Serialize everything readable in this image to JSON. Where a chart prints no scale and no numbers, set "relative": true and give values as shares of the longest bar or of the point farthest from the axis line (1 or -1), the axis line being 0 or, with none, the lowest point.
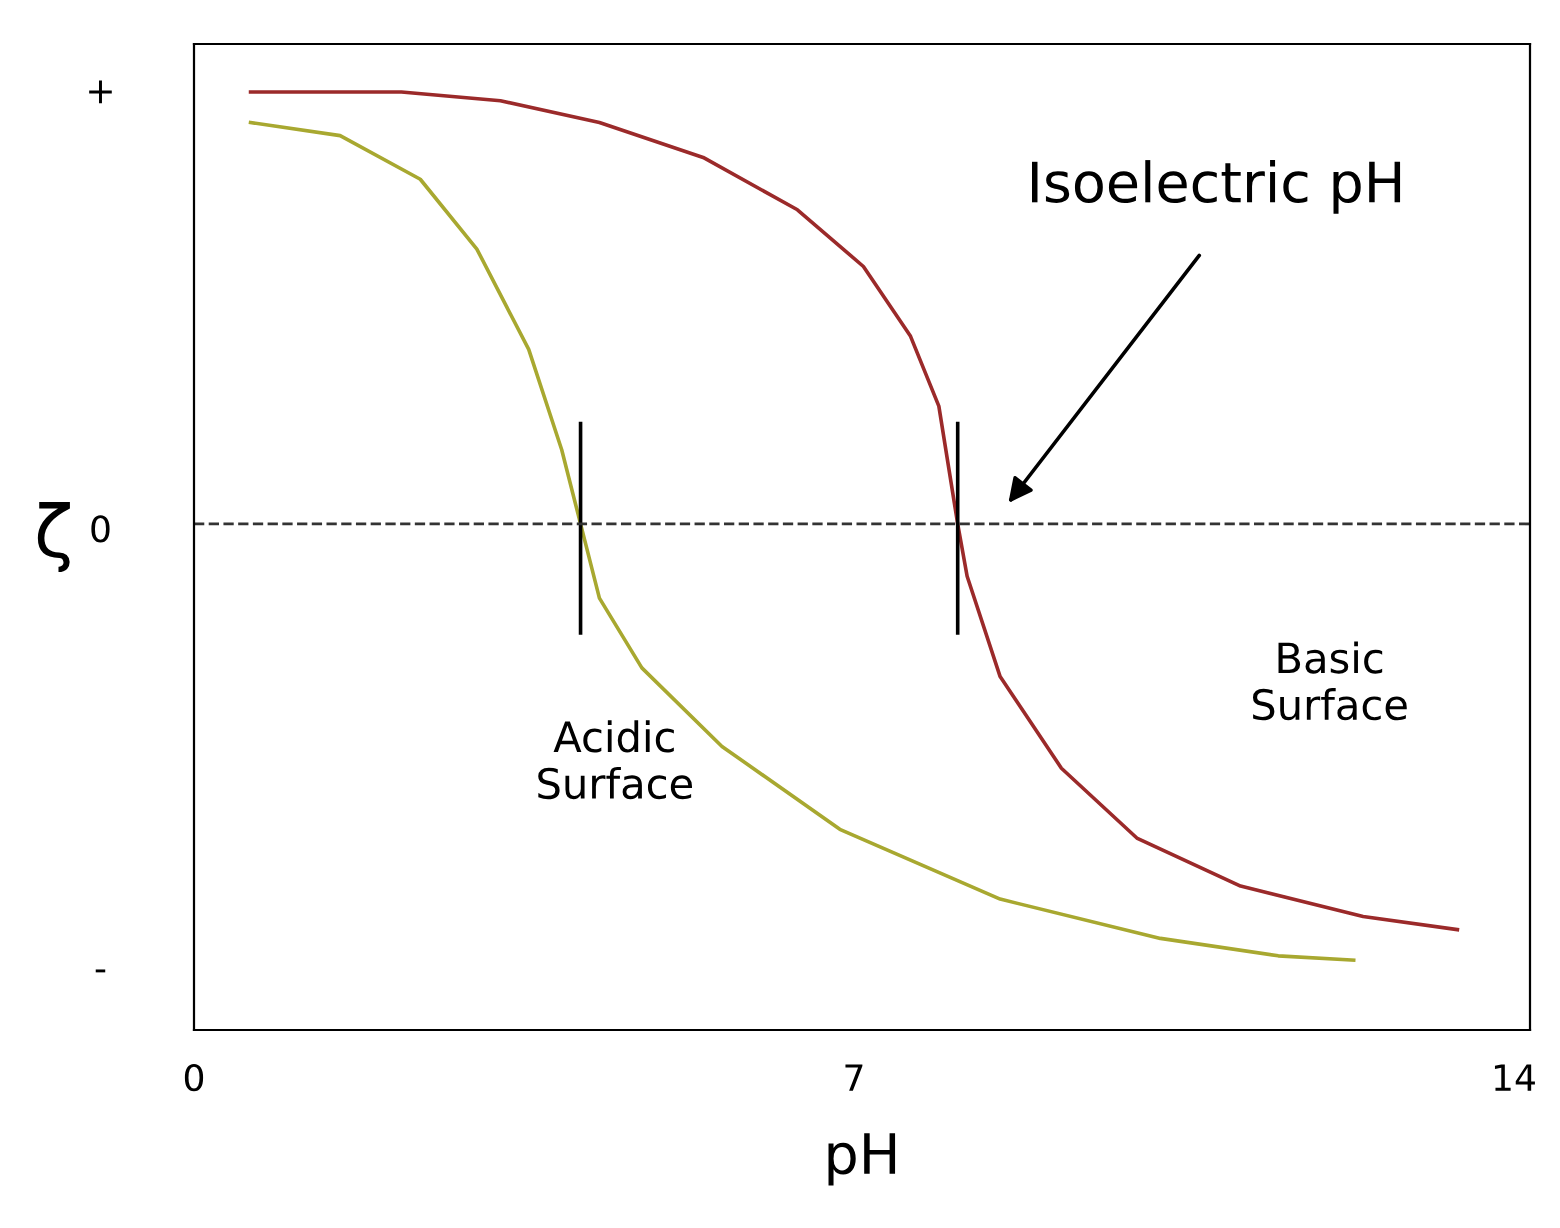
{
  "chart_data": {
    "type": "line",
    "xlabel": "pH",
    "ylabel": "ζ",
    "xlim": [
      0,
      14.17
    ],
    "xticks": [
      0,
      7,
      14
    ],
    "relative": true,
    "series": [
      {
        "color": "#9b2a2a",
        "x": [
          0.6,
          2.2,
          3.25,
          4.3,
          5.4,
          6.4,
          7.1,
          7.6,
          7.9,
          8.1,
          8.2,
          8.55,
          9.2,
          10.0,
          11.1,
          12.4,
          13.4
        ],
        "values": [
          0.99,
          0.99,
          0.97,
          0.92,
          0.84,
          0.72,
          0.59,
          0.43,
          0.27,
          0,
          -0.12,
          -0.35,
          -0.56,
          -0.72,
          -0.83,
          -0.9,
          -0.93
        ]
      },
      {
        "color": "#a8a830",
        "x": [
          0.6,
          1.55,
          2.4,
          3.0,
          3.55,
          3.9,
          4.1,
          4.3,
          4.75,
          5.6,
          6.85,
          8.55,
          10.25,
          11.5,
          12.3
        ],
        "values": [
          0.92,
          0.89,
          0.79,
          0.63,
          0.4,
          0.17,
          0,
          -0.17,
          -0.33,
          -0.51,
          -0.7,
          -0.86,
          -0.95,
          -0.99,
          -1.0
        ]
      },
      {
        "color": "#000000",
        "x": [
          4.1,
          4.1
        ],
        "values": [
          0.23,
          -0.25
        ]
      },
      {
        "color": "#000000",
        "x": [
          8.1,
          8.1
        ],
        "values": [
          0.23,
          -0.25
        ]
      }
    ],
    "ref_lines": [
      {
        "axis": "y",
        "value": 0,
        "color": "#333333",
        "line_style": "dashed"
      }
    ],
    "annotations": [
      "Isoelectric pH",
      "Acidic\nSurface",
      "Basic\nSurface",
      "+",
      "0",
      "-"
    ],
    "grid": false,
    "legend": false,
    "marker": "none",
    "line_style": "solid"
  }
}
